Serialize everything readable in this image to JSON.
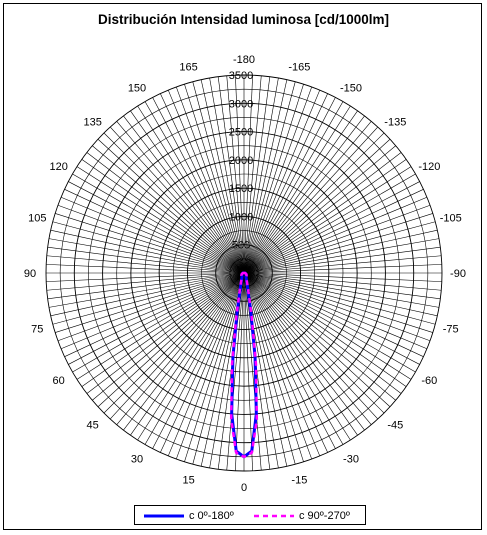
{
  "chart_data": {
    "type": "polar",
    "title": "Distribución Intensidad luminosa [cd/1000lm]",
    "radial_axis": {
      "range": [
        0,
        3500
      ],
      "tick_labels": [
        "500",
        "1000",
        "1500",
        "2000",
        "2500",
        "3000",
        "3500"
      ],
      "tick_values": [
        500,
        1000,
        1500,
        2000,
        2500,
        3000,
        3500
      ],
      "minor_ring_step": 250
    },
    "angular_axis": {
      "zero_direction": "bottom",
      "tick_labels": [
        {
          "angle": 0,
          "label": "0"
        },
        {
          "angle": 15,
          "label": "15"
        },
        {
          "angle": 30,
          "label": "30"
        },
        {
          "angle": 45,
          "label": "45"
        },
        {
          "angle": 60,
          "label": "60"
        },
        {
          "angle": 75,
          "label": "75"
        },
        {
          "angle": 90,
          "label": "90"
        },
        {
          "angle": 105,
          "label": "105"
        },
        {
          "angle": 120,
          "label": "120"
        },
        {
          "angle": 135,
          "label": "135"
        },
        {
          "angle": 150,
          "label": "150"
        },
        {
          "angle": 165,
          "label": "165"
        },
        {
          "angle": 180,
          "label": "-180"
        },
        {
          "angle": -15,
          "label": "-15"
        },
        {
          "angle": -30,
          "label": "-30"
        },
        {
          "angle": -45,
          "label": "-45"
        },
        {
          "angle": -60,
          "label": "-60"
        },
        {
          "angle": -75,
          "label": "-75"
        },
        {
          "angle": -90,
          "label": "-90"
        },
        {
          "angle": -105,
          "label": "-105"
        },
        {
          "angle": -120,
          "label": "-120"
        },
        {
          "angle": -135,
          "label": "-135"
        },
        {
          "angle": -150,
          "label": "-150"
        },
        {
          "angle": -165,
          "label": "-165"
        }
      ],
      "spoke_step_deg": 2.5
    },
    "grid": true,
    "legend_position": "bottom",
    "series": [
      {
        "name": "c 0º-180º",
        "color": "#0000ff",
        "dash": "solid",
        "angles": [
          -180,
          -120,
          -90,
          -60,
          -45,
          -30,
          -20,
          -15,
          -10,
          -7.5,
          -5,
          -2.5,
          0,
          2.5,
          5,
          7.5,
          10,
          15,
          20,
          30,
          45,
          60,
          90,
          120,
          180
        ],
        "values": [
          0,
          0,
          20,
          45,
          55,
          70,
          120,
          220,
          700,
          1500,
          2500,
          3150,
          3250,
          3150,
          2500,
          1500,
          700,
          220,
          120,
          70,
          55,
          45,
          20,
          0,
          0
        ]
      },
      {
        "name": "c 90º-270º",
        "color": "#ff00ff",
        "dash": "dashed",
        "angles": [
          -180,
          -120,
          -90,
          -60,
          -45,
          -30,
          -20,
          -15,
          -10,
          -7.5,
          -5,
          -2.5,
          0,
          2.5,
          5,
          7.5,
          10,
          15,
          20,
          30,
          45,
          60,
          90,
          120,
          180
        ],
        "values": [
          0,
          0,
          20,
          50,
          65,
          80,
          140,
          260,
          780,
          1620,
          2600,
          3180,
          3250,
          3180,
          2600,
          1620,
          780,
          260,
          140,
          80,
          65,
          50,
          20,
          0,
          0
        ]
      }
    ]
  }
}
